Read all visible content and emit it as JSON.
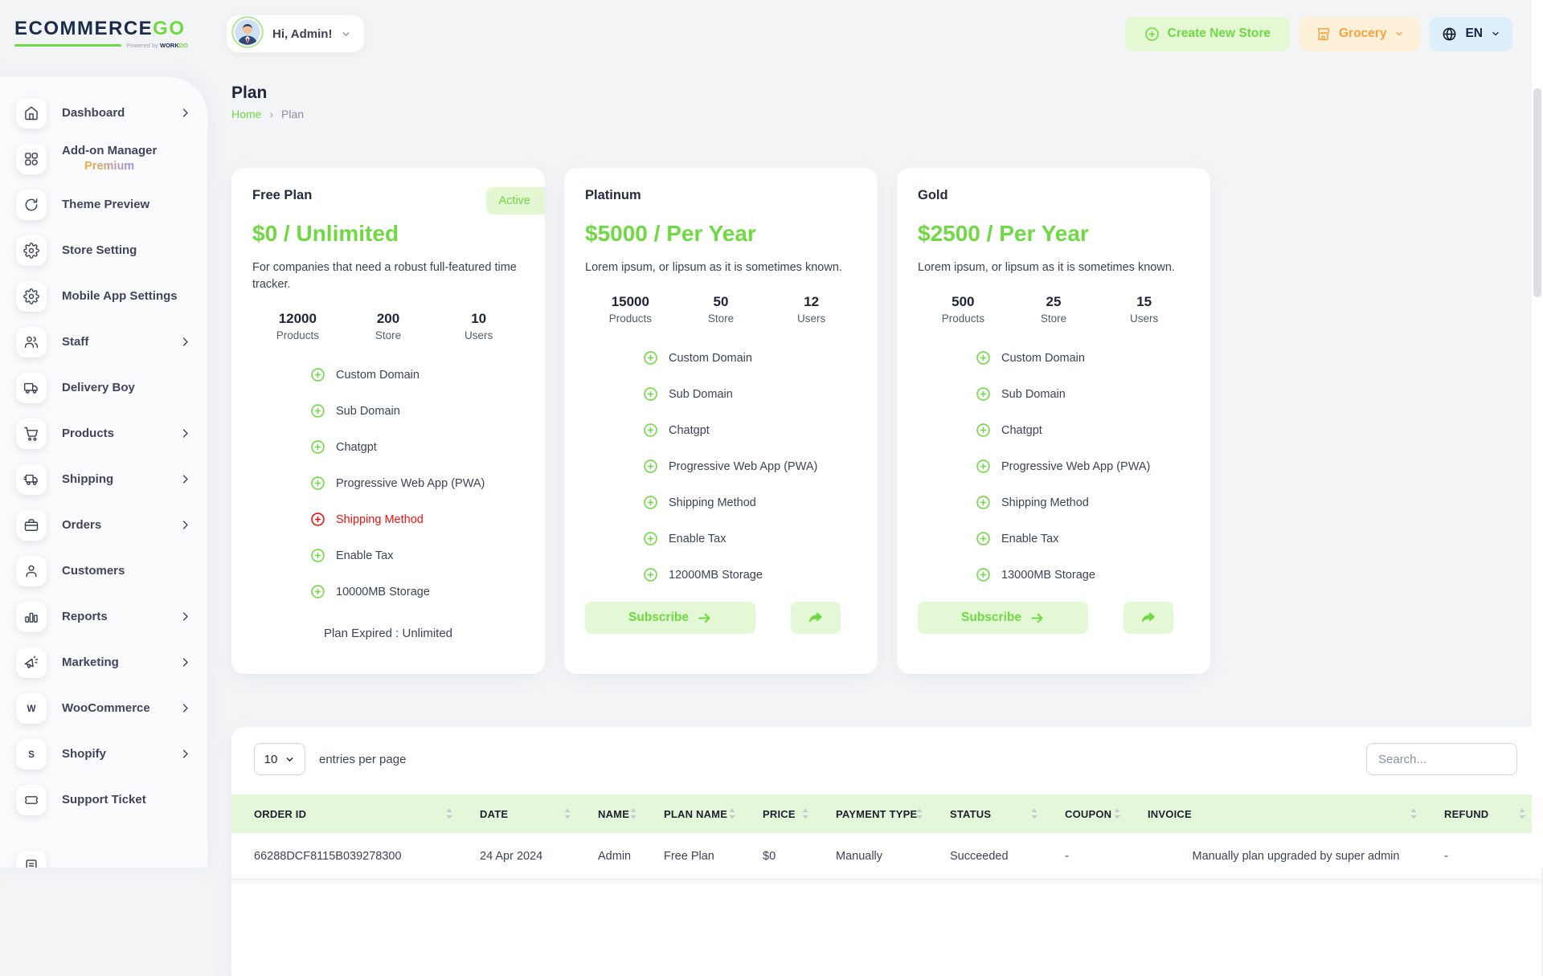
{
  "colors": {
    "accent_green": "#6fd943",
    "accent_green_bg": "#e4f8d3",
    "danger_red": "#f20f0f",
    "orange": "#f5a340",
    "orange_bg": "#fcf0d9",
    "blue_bg": "#ddeffb",
    "table_header_bg": "#e4f7d9"
  },
  "brand": {
    "name": "ECOMMERCE",
    "name_accent": "GO",
    "powered_by": "Powered by",
    "powered_brand": "WORK",
    "powered_brand_accent": "DO"
  },
  "header": {
    "greeting": "Hi, Admin!",
    "create_store_label": "Create New Store",
    "store_name": "Grocery",
    "language": "EN"
  },
  "page": {
    "title": "Plan",
    "breadcrumb": {
      "home": "Home",
      "separator": "›",
      "current": "Plan"
    }
  },
  "sidebar": {
    "items": [
      {
        "label": "Dashboard",
        "icon": "home-icon",
        "chevron": true
      },
      {
        "label": "Add-on Manager",
        "sublabel": "Premium",
        "icon": "grid-icon",
        "chevron": false
      },
      {
        "label": "Theme Preview",
        "icon": "refresh-icon",
        "chevron": false
      },
      {
        "label": "Store Setting",
        "icon": "gear-icon",
        "chevron": false
      },
      {
        "label": "Mobile App Settings",
        "icon": "gear-icon",
        "chevron": false
      },
      {
        "label": "Staff",
        "icon": "users-icon",
        "chevron": true
      },
      {
        "label": "Delivery Boy",
        "icon": "truck-icon",
        "chevron": false
      },
      {
        "label": "Products",
        "icon": "cart-icon",
        "chevron": true
      },
      {
        "label": "Shipping",
        "icon": "shipping-truck-icon",
        "chevron": true
      },
      {
        "label": "Orders",
        "icon": "briefcase-icon",
        "chevron": true
      },
      {
        "label": "Customers",
        "icon": "user-icon",
        "chevron": false
      },
      {
        "label": "Reports",
        "icon": "bar-chart-icon",
        "chevron": true
      },
      {
        "label": "Marketing",
        "icon": "megaphone-icon",
        "chevron": true
      },
      {
        "label": "WooCommerce",
        "icon": "woocommerce-icon",
        "chevron": true
      },
      {
        "label": "Shopify",
        "icon": "shopify-icon",
        "chevron": true
      },
      {
        "label": "Support Ticket",
        "icon": "ticket-icon",
        "chevron": false
      },
      {
        "label": "",
        "icon": "document-icon",
        "chevron": false
      }
    ]
  },
  "plans": [
    {
      "name": "Free Plan",
      "badge": "Active",
      "price": "$0 / Unlimited",
      "description": "For companies that need a robust full-featured time tracker.",
      "stats": [
        {
          "value": "12000",
          "label": "Products"
        },
        {
          "value": "200",
          "label": "Store"
        },
        {
          "value": "10",
          "label": "Users"
        }
      ],
      "features": [
        {
          "label": "Custom Domain",
          "included": true
        },
        {
          "label": "Sub Domain",
          "included": true
        },
        {
          "label": "Chatgpt",
          "included": true
        },
        {
          "label": "Progressive Web App (PWA)",
          "included": true
        },
        {
          "label": "Shipping Method",
          "included": false
        },
        {
          "label": "Enable Tax",
          "included": true
        },
        {
          "label": "10000MB Storage",
          "included": true
        }
      ],
      "footer_note": "Plan Expired : Unlimited"
    },
    {
      "name": "Platinum",
      "price": "$5000 / Per Year",
      "description": "Lorem ipsum, or lipsum as it is sometimes known.",
      "stats": [
        {
          "value": "15000",
          "label": "Products"
        },
        {
          "value": "50",
          "label": "Store"
        },
        {
          "value": "12",
          "label": "Users"
        }
      ],
      "features": [
        {
          "label": "Custom Domain",
          "included": true
        },
        {
          "label": "Sub Domain",
          "included": true
        },
        {
          "label": "Chatgpt",
          "included": true
        },
        {
          "label": "Progressive Web App (PWA)",
          "included": true
        },
        {
          "label": "Shipping Method",
          "included": true
        },
        {
          "label": "Enable Tax",
          "included": true
        },
        {
          "label": "12000MB Storage",
          "included": true
        }
      ],
      "subscribe_label": "Subscribe"
    },
    {
      "name": "Gold",
      "price": "$2500 / Per Year",
      "description": "Lorem ipsum, or lipsum as it is sometimes known.",
      "stats": [
        {
          "value": "500",
          "label": "Products"
        },
        {
          "value": "25",
          "label": "Store"
        },
        {
          "value": "15",
          "label": "Users"
        }
      ],
      "features": [
        {
          "label": "Custom Domain",
          "included": true
        },
        {
          "label": "Sub Domain",
          "included": true
        },
        {
          "label": "Chatgpt",
          "included": true
        },
        {
          "label": "Progressive Web App (PWA)",
          "included": true
        },
        {
          "label": "Shipping Method",
          "included": true
        },
        {
          "label": "Enable Tax",
          "included": true
        },
        {
          "label": "13000MB Storage",
          "included": true
        }
      ],
      "subscribe_label": "Subscribe"
    }
  ],
  "table": {
    "entries_value": "10",
    "entries_suffix": "entries per page",
    "search_placeholder": "Search...",
    "columns": [
      "ORDER ID",
      "DATE",
      "NAME",
      "PLAN NAME",
      "PRICE",
      "PAYMENT TYPE",
      "STATUS",
      "COUPON",
      "INVOICE",
      "REFUND"
    ],
    "rows": [
      [
        "66288DCF8115B039278300",
        "24 Apr 2024",
        "Admin",
        "Free Plan",
        "$0",
        "Manually",
        "Succeeded",
        "-",
        "Manually plan upgraded by super admin",
        "-"
      ]
    ]
  }
}
